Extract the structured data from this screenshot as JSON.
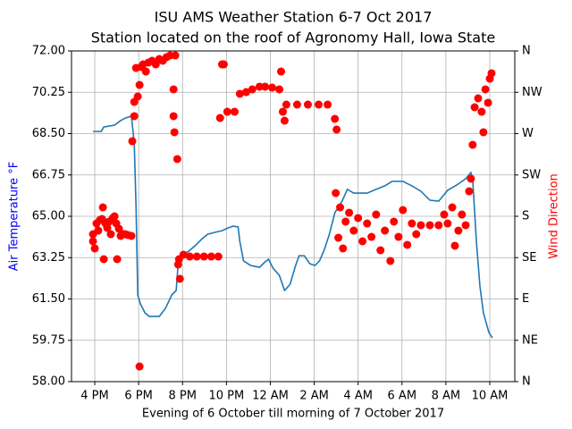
{
  "chart_data": {
    "type": "line",
    "title": "ISU AMS Weather Station 6-7 Oct 2017",
    "subtitle": "Station located on the roof of Agronomy Hall, Iowa State",
    "x_label": "Evening of 6 October till morning of 7 October 2017",
    "y_label": "Air Temperature °F",
    "y2_label": "Wind Direction",
    "y_label_color": "#0000ff",
    "y2_label_color": "#ff0000",
    "grid": true,
    "xlim": [
      14.94,
      35.14
    ],
    "xticks": [
      {
        "value": 16,
        "label": "4 PM"
      },
      {
        "value": 18,
        "label": "6 PM"
      },
      {
        "value": 20,
        "label": "8 PM"
      },
      {
        "value": 22,
        "label": "10 PM"
      },
      {
        "value": 24,
        "label": "12 AM"
      },
      {
        "value": 26,
        "label": "2 AM"
      },
      {
        "value": 28,
        "label": "4 AM"
      },
      {
        "value": 30,
        "label": "6 AM"
      },
      {
        "value": 32,
        "label": "8 AM"
      },
      {
        "value": 34,
        "label": "10 AM"
      }
    ],
    "ylim": [
      58,
      72
    ],
    "yticks": [
      {
        "value": 58,
        "label": "58.00"
      },
      {
        "value": 59.75,
        "label": "59.75"
      },
      {
        "value": 61.5,
        "label": "61.50"
      },
      {
        "value": 63.25,
        "label": "63.25"
      },
      {
        "value": 65,
        "label": "65.00"
      },
      {
        "value": 66.75,
        "label": "66.75"
      },
      {
        "value": 68.5,
        "label": "68.50"
      },
      {
        "value": 70.25,
        "label": "70.25"
      },
      {
        "value": 72,
        "label": "72.00"
      }
    ],
    "y2lim": [
      0,
      360
    ],
    "y2ticks": [
      {
        "value": 0,
        "label": "N"
      },
      {
        "value": 45,
        "label": "NE"
      },
      {
        "value": 90,
        "label": "E"
      },
      {
        "value": 135,
        "label": "SE"
      },
      {
        "value": 180,
        "label": "S"
      },
      {
        "value": 225,
        "label": "SW"
      },
      {
        "value": 270,
        "label": "W"
      },
      {
        "value": 315,
        "label": "NW"
      },
      {
        "value": 360,
        "label": "N"
      }
    ],
    "series": [
      {
        "type": "line",
        "color": "#1f77b4",
        "axis": "y",
        "x": [
          15.92,
          16.29,
          16.41,
          16.9,
          17.18,
          17.39,
          17.67,
          17.8,
          17.88,
          17.96,
          18.08,
          18.29,
          18.49,
          18.94,
          19.22,
          19.51,
          19.71,
          19.8,
          19.96,
          20.24,
          20.57,
          20.86,
          21.14,
          21.47,
          21.8,
          22.08,
          22.29,
          22.53,
          22.61,
          22.78,
          23.1,
          23.51,
          23.76,
          23.92,
          24.12,
          24.41,
          24.65,
          24.9,
          25.14,
          25.31,
          25.55,
          25.8,
          26.04,
          26.24,
          26.45,
          26.69,
          26.94,
          27.27,
          27.51,
          27.8,
          28.41,
          28.82,
          29.22,
          29.55,
          30.04,
          30.45,
          30.86,
          31.27,
          31.67,
          32.08,
          32.49,
          32.9,
          33.14,
          33.22,
          33.39,
          33.55,
          33.71,
          33.96,
          34.12
        ],
        "values": [
          68.59,
          68.59,
          68.78,
          68.86,
          69.05,
          69.16,
          69.24,
          68.1,
          65.45,
          61.67,
          61.29,
          60.91,
          60.76,
          60.76,
          61.1,
          61.67,
          61.86,
          62.99,
          63.37,
          63.49,
          63.75,
          64.02,
          64.24,
          64.32,
          64.39,
          64.51,
          64.58,
          64.55,
          63.94,
          63.11,
          62.92,
          62.84,
          63.07,
          63.18,
          62.81,
          62.5,
          61.86,
          62.12,
          62.88,
          63.33,
          63.33,
          62.99,
          62.92,
          63.11,
          63.56,
          64.24,
          65.15,
          65.64,
          66.14,
          65.98,
          65.98,
          66.14,
          66.29,
          66.48,
          66.48,
          66.29,
          66.06,
          65.68,
          65.64,
          66.1,
          66.32,
          66.59,
          66.85,
          66.59,
          63.94,
          62.05,
          60.91,
          60.08,
          59.85
        ]
      },
      {
        "type": "scatter",
        "color": "#ff0000",
        "axis": "y2",
        "x": [
          15.92,
          15.92,
          16.0,
          16.08,
          16.16,
          16.24,
          16.33,
          16.37,
          16.41,
          16.49,
          16.57,
          16.65,
          16.73,
          16.82,
          16.9,
          16.98,
          17.02,
          17.1,
          17.18,
          17.27,
          17.39,
          17.51,
          17.67,
          17.71,
          17.8,
          17.8,
          17.88,
          17.96,
          18.04,
          18.04,
          18.12,
          18.2,
          18.33,
          18.45,
          18.61,
          18.78,
          18.94,
          19.1,
          19.27,
          19.43,
          19.59,
          19.59,
          19.63,
          19.67,
          19.76,
          19.8,
          19.84,
          19.88,
          20.04,
          20.33,
          20.65,
          20.98,
          21.31,
          21.63,
          21.71,
          21.8,
          21.88,
          22.04,
          22.37,
          22.61,
          22.9,
          23.18,
          23.51,
          23.76,
          24.08,
          24.41,
          24.49,
          24.57,
          24.65,
          24.73,
          25.22,
          25.71,
          26.2,
          26.61,
          26.94,
          27.02,
          26.98,
          27.1,
          27.18,
          27.31,
          27.43,
          27.59,
          27.8,
          28.0,
          28.2,
          28.41,
          28.61,
          28.82,
          29.02,
          29.22,
          29.47,
          29.63,
          29.84,
          30.04,
          30.24,
          30.45,
          30.65,
          30.86,
          31.27,
          31.67,
          31.92,
          32.08,
          32.29,
          32.41,
          32.57,
          32.73,
          32.9,
          33.06,
          33.14,
          33.22,
          33.31,
          33.47,
          33.63,
          33.71,
          33.8,
          33.92,
          34.0,
          34.08
        ],
        "values": [
          152.8,
          160.5,
          145.0,
          172.2,
          164.4,
          176.1,
          177.1,
          189.7,
          133.3,
          172.2,
          167.4,
          174.2,
          160.5,
          178.1,
          180.0,
          172.2,
          133.3,
          166.4,
          158.6,
          160.5,
          160.5,
          159.6,
          158.6,
          261.7,
          289.0,
          304.5,
          341.5,
          310.4,
          323.0,
          16.5,
          342.5,
          345.4,
          337.6,
          347.4,
          349.3,
          345.4,
          351.2,
          349.3,
          353.2,
          355.1,
          318.2,
          289.0,
          271.5,
          355.1,
          242.3,
          127.5,
          133.3,
          111.9,
          138.2,
          136.2,
          136.2,
          136.2,
          136.2,
          136.2,
          287.0,
          345.4,
          345.4,
          293.8,
          293.8,
          313.3,
          315.2,
          318.2,
          321.1,
          321.1,
          320.1,
          318.2,
          337.6,
          293.8,
          284.1,
          301.6,
          301.6,
          301.6,
          301.6,
          301.6,
          286.1,
          274.4,
          205.3,
          156.6,
          189.7,
          145.0,
          174.2,
          183.9,
          164.4,
          178.1,
          152.8,
          172.2,
          157.6,
          181.9,
          143.0,
          164.4,
          131.4,
          174.2,
          157.6,
          186.8,
          148.9,
          172.2,
          160.5,
          170.3,
          170.3,
          170.3,
          181.9,
          172.2,
          189.7,
          147.9,
          164.4,
          181.9,
          170.3,
          207.2,
          220.9,
          257.8,
          298.7,
          308.4,
          293.8,
          271.5,
          318.2,
          303.6,
          329.8,
          335.7
        ]
      }
    ]
  }
}
